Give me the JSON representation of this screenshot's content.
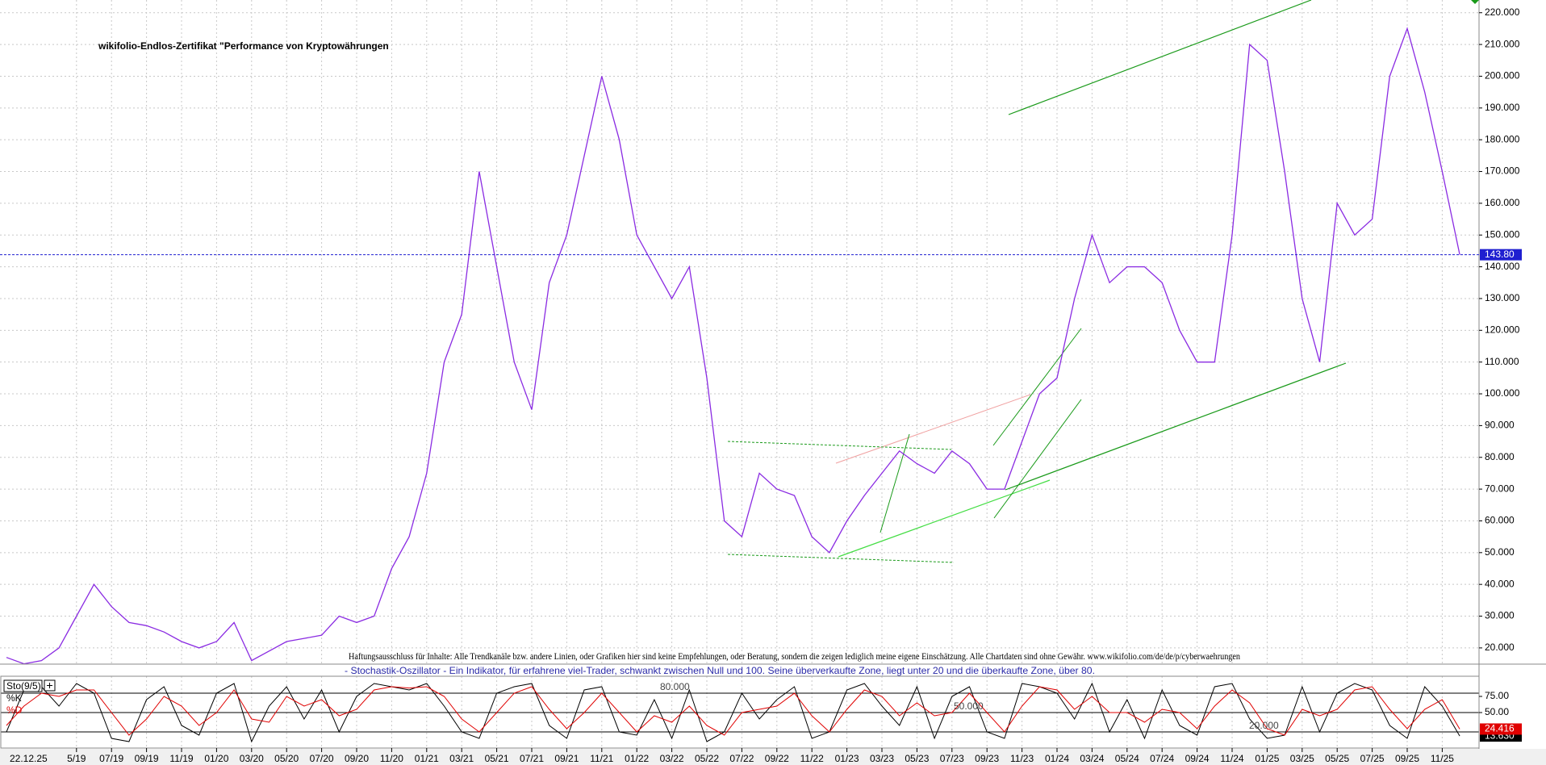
{
  "chart_data": [
    {
      "type": "line",
      "title": "wikifolio-Endlos-Zertifikat \"Performance von Kryptowährungen",
      "note": "Haftungsausschluss für Inhalte: Alle Trendkanäle bzw. andere Linien, oder Grafiken hier sind keine Empfehlungen, oder Beratung, sondern die zeigen lediglich meine eigene Einschätzung. Alle Chartdaten sind ohne Gewähr.  www.wikifolio.com/de/de/p/cyberwaehrungen",
      "date_label": "22.12.25",
      "categories": [
        null,
        null,
        null,
        null,
        "5/19",
        null,
        "07/19",
        null,
        "09/19",
        null,
        "11/19",
        null,
        "01/20",
        null,
        "03/20",
        null,
        "05/20",
        null,
        "07/20",
        null,
        "09/20",
        null,
        "11/20",
        null,
        "01/21",
        null,
        "03/21",
        null,
        "05/21",
        null,
        "07/21",
        null,
        "09/21",
        null,
        "11/21",
        null,
        "01/22",
        null,
        "03/22",
        null,
        "05/22",
        null,
        "07/22",
        null,
        "09/22",
        null,
        "11/22",
        null,
        "01/23",
        null,
        "03/23",
        null,
        "05/23",
        null,
        "07/23",
        null,
        "09/23",
        null,
        "11/23",
        null,
        "01/24",
        null,
        "03/24",
        null,
        "05/24",
        null,
        "07/24",
        null,
        "09/24",
        null,
        "11/24",
        null,
        "01/25",
        null,
        "03/25",
        null,
        "05/25",
        null,
        "07/25",
        null,
        "09/25",
        null,
        "11/25",
        null
      ],
      "values": [
        17,
        15,
        16,
        20,
        30,
        40,
        33,
        28,
        27,
        25,
        22,
        20,
        22,
        28,
        16,
        19,
        22,
        23,
        24,
        30,
        28,
        30,
        45,
        55,
        75,
        110,
        125,
        170,
        140,
        110,
        95,
        135,
        150,
        175,
        200,
        180,
        150,
        140,
        130,
        140,
        105,
        60,
        55,
        75,
        70,
        68,
        55,
        50,
        60,
        68,
        75,
        82,
        78,
        75,
        82,
        78,
        70,
        70,
        85,
        100,
        105,
        130,
        150,
        135,
        140,
        140,
        135,
        120,
        110,
        110,
        150,
        210,
        205,
        170,
        130,
        110,
        160,
        150,
        155,
        200,
        215,
        195,
        170,
        143.8
      ],
      "color": "#8a2be2",
      "last_value": {
        "value": 143.8,
        "label": "143.80"
      },
      "ylim": [
        15.4,
        224
      ],
      "yticks": [
        {
          "value": 20,
          "label": "20.000"
        },
        {
          "value": 30,
          "label": "30.000"
        },
        {
          "value": 40,
          "label": "40.000"
        },
        {
          "value": 50,
          "label": "50.000"
        },
        {
          "value": 60,
          "label": "60.000"
        },
        {
          "value": 70,
          "label": "70.000"
        },
        {
          "value": 80,
          "label": "80.000"
        },
        {
          "value": 90,
          "label": "90.000"
        },
        {
          "value": 100,
          "label": "100.000"
        },
        {
          "value": 110,
          "label": "110.000"
        },
        {
          "value": 120,
          "label": "120.000"
        },
        {
          "value": 130,
          "label": "130.000"
        },
        {
          "value": 140,
          "label": "140.000"
        },
        {
          "value": 150,
          "label": "150.000"
        },
        {
          "value": 160,
          "label": "160.000"
        },
        {
          "value": 170,
          "label": "170.000"
        },
        {
          "value": 180,
          "label": "180.000"
        },
        {
          "value": 190,
          "label": "190.000"
        },
        {
          "value": 200,
          "label": "200.000"
        },
        {
          "value": 210,
          "label": "210.000"
        },
        {
          "value": 220,
          "label": "220.000"
        }
      ],
      "grid": true
    },
    {
      "type": "line",
      "legend_title": "Sto(9/5)",
      "subtitle": "- Stochastik-Oszillator - Ein Indikator, für erfahrene viel-Trader, schwankt zwischen Null und 100. Seine überverkaufte Zone, liegt unter 20 und die überkaufte Zone, über 80.",
      "series": [
        {
          "name": "%K",
          "color": "#000000",
          "last_value": {
            "value": 13.63,
            "label": "13.630"
          },
          "values": [
            20,
            85,
            90,
            60,
            95,
            80,
            10,
            5,
            70,
            90,
            30,
            15,
            80,
            95,
            5,
            60,
            90,
            40,
            85,
            20,
            75,
            95,
            90,
            85,
            95,
            60,
            20,
            10,
            80,
            90,
            95,
            30,
            10,
            85,
            90,
            20,
            15,
            70,
            10,
            85,
            5,
            20,
            80,
            40,
            70,
            90,
            10,
            20,
            85,
            95,
            60,
            30,
            90,
            10,
            75,
            90,
            20,
            10,
            95,
            90,
            80,
            40,
            95,
            20,
            70,
            10,
            85,
            30,
            15,
            90,
            95,
            40,
            10,
            15,
            90,
            20,
            80,
            95,
            85,
            30,
            10,
            90,
            60,
            13.63
          ]
        },
        {
          "name": "%D",
          "color": "#e00000",
          "last_value": {
            "value": 24.416,
            "label": "24.416"
          },
          "values": [
            30,
            60,
            80,
            75,
            85,
            85,
            50,
            15,
            40,
            75,
            60,
            30,
            50,
            85,
            40,
            35,
            75,
            60,
            70,
            45,
            55,
            85,
            90,
            88,
            90,
            75,
            40,
            20,
            50,
            80,
            90,
            55,
            25,
            50,
            80,
            50,
            20,
            45,
            35,
            60,
            30,
            15,
            50,
            55,
            60,
            80,
            45,
            20,
            55,
            85,
            75,
            45,
            65,
            45,
            50,
            80,
            50,
            20,
            60,
            90,
            85,
            55,
            75,
            50,
            50,
            35,
            55,
            50,
            25,
            60,
            85,
            65,
            25,
            15,
            55,
            45,
            55,
            85,
            90,
            55,
            25,
            55,
            70,
            24.416
          ]
        }
      ],
      "ylim": [
        0,
        100
      ],
      "yticks": [
        {
          "value": 75,
          "label": "75.00"
        },
        {
          "value": 50,
          "label": "50.00"
        }
      ],
      "levels": [
        {
          "value": 80,
          "label": "80.000"
        },
        {
          "value": 50,
          "label": "50.000"
        },
        {
          "value": 20,
          "label": "20.000"
        }
      ]
    }
  ]
}
